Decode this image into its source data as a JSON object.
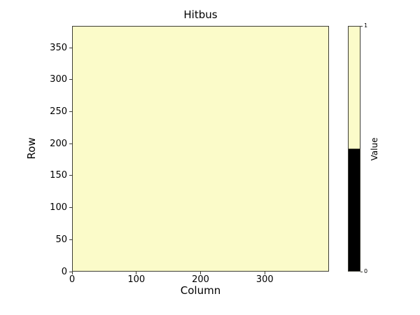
{
  "chart_data": {
    "type": "heatmap",
    "title": "Hitbus",
    "xlabel": "Column",
    "ylabel": "Row",
    "xlim": [
      0,
      400
    ],
    "ylim": [
      0,
      384
    ],
    "xticks": [
      0,
      100,
      200,
      300
    ],
    "yticks": [
      0,
      50,
      100,
      150,
      200,
      250,
      300,
      350
    ],
    "grid": false,
    "values": "uniform",
    "uniform_value": 1,
    "legend": "none",
    "colorbar": {
      "label": "Value",
      "position": "right",
      "range": [
        0,
        1
      ],
      "ticks": [
        0,
        1
      ],
      "boundary": 0.5,
      "color_low": "#000000",
      "color_high": "#fbfbc9"
    }
  },
  "colors": {
    "background": "#ffffff",
    "heatmap_fill": "#fbfbc9",
    "spine": "#3d3d35",
    "text": "#000000"
  }
}
